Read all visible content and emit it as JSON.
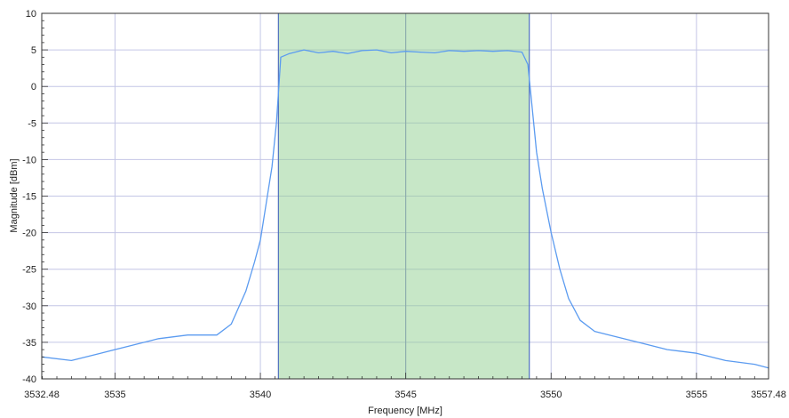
{
  "chart_data": {
    "type": "line",
    "title": "",
    "xlabel": "Frequency [MHz]",
    "ylabel": "Magnitude [dBm]",
    "xlim": [
      3532.48,
      3557.48
    ],
    "ylim": [
      -40,
      10
    ],
    "x_ticks": [
      3532.48,
      3535,
      3540,
      3545,
      3550,
      3555,
      3557.48
    ],
    "x_tick_labels": [
      "3532.48",
      "3535",
      "3540",
      "3545",
      "3550",
      "3555",
      "3557.48"
    ],
    "y_ticks": [
      10,
      5,
      0,
      -5,
      -10,
      -15,
      -20,
      -25,
      -30,
      -35,
      -40
    ],
    "y_tick_labels": [
      "10",
      "5",
      "0",
      "-5",
      "-10",
      "-15",
      "-20",
      "-25",
      "-30",
      "-35",
      "-40"
    ],
    "grid": true,
    "highlight_band": {
      "x_start": 3540.62,
      "x_end": 3549.25
    },
    "series": [
      {
        "x": [
          3532.48,
          3533.5,
          3534.5,
          3535.5,
          3536.5,
          3537.5,
          3538.5,
          3539.0,
          3539.5,
          3539.8,
          3540.0,
          3540.2,
          3540.4,
          3540.55,
          3540.62,
          3540.7,
          3541.0,
          3541.5,
          3542.0,
          3542.5,
          3543.0,
          3543.5,
          3544.0,
          3544.5,
          3545.0,
          3545.5,
          3546.0,
          3546.5,
          3547.0,
          3547.5,
          3548.0,
          3548.5,
          3549.0,
          3549.2,
          3549.3,
          3549.5,
          3549.7,
          3550.0,
          3550.3,
          3550.6,
          3551.0,
          3551.5,
          3552.0,
          3553.0,
          3554.0,
          3555.0,
          3556.0,
          3557.0,
          3557.48
        ],
        "values": [
          -37.0,
          -37.5,
          -36.5,
          -35.5,
          -34.5,
          -34.0,
          -34.0,
          -32.5,
          -28.0,
          -24.0,
          -21.0,
          -16.0,
          -11.0,
          -5.0,
          -1.0,
          4.0,
          4.5,
          5.0,
          4.6,
          4.8,
          4.5,
          4.9,
          5.0,
          4.6,
          4.8,
          4.7,
          4.6,
          4.9,
          4.8,
          4.9,
          4.8,
          4.9,
          4.7,
          3.0,
          -1.0,
          -9.0,
          -14.0,
          -20.0,
          -25.0,
          -29.0,
          -32.0,
          -33.5,
          -34.0,
          -35.0,
          -36.0,
          -36.5,
          -37.5,
          -38.0,
          -38.5
        ]
      }
    ]
  },
  "colors": {
    "line": "#5b9bf0",
    "band_fill": "#8fcf8f",
    "band_edge": "#4f6fbf",
    "grid": "#c4c6e6",
    "axis": "#333333"
  }
}
